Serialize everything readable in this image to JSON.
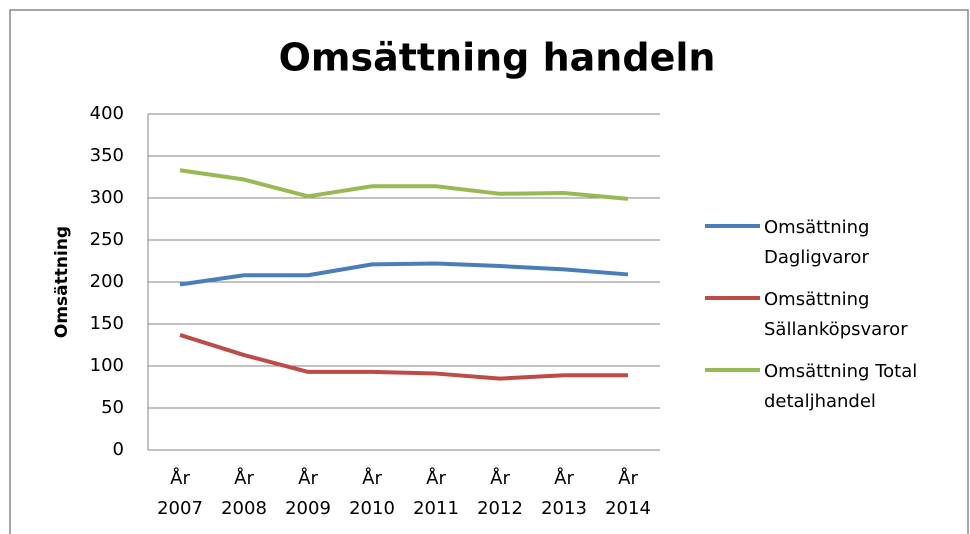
{
  "chart_data": {
    "type": "line",
    "title": "Omsättning handeln",
    "y_label": "Omsättning",
    "categories": [
      "År 2007",
      "År 2008",
      "År 2009",
      "År 2010",
      "År 2011",
      "År 2012",
      "År 2013",
      "År 2014"
    ],
    "series": [
      {
        "name": "Omsättning Dagligvaror",
        "color": "#4a7ebb",
        "values": [
          197,
          208,
          208,
          221,
          222,
          219,
          215,
          209
        ]
      },
      {
        "name": "Omsättning Sällanköpsvaror",
        "color": "#be4b48",
        "values": [
          137,
          113,
          93,
          93,
          91,
          85,
          89,
          89
        ]
      },
      {
        "name": "Omsättning Total detaljhandel",
        "color": "#98b954",
        "values": [
          333,
          322,
          302,
          314,
          314,
          305,
          306,
          299
        ]
      }
    ],
    "ylim": [
      0,
      400
    ],
    "yticks": [
      0,
      50,
      100,
      150,
      200,
      250,
      300,
      350,
      400
    ],
    "grid": true,
    "legend": "right"
  }
}
